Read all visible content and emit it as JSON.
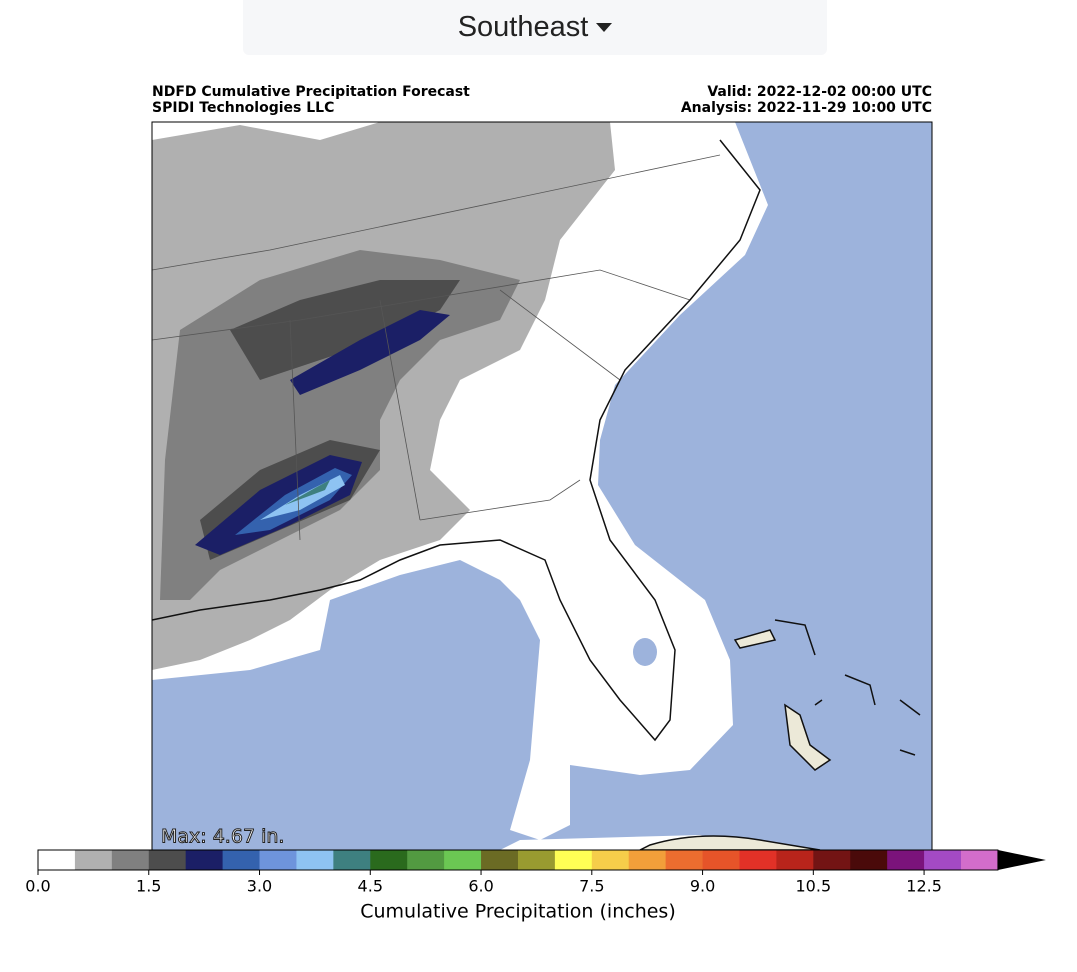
{
  "header": {
    "region": "Southeast"
  },
  "map": {
    "title": "NDFD Cumulative Precipitation Forecast",
    "subtitle": "SPIDI Technologies LLC",
    "valid": "Valid: 2022-12-02 00:00 UTC",
    "analysis": "Analysis: 2022-11-29 10:00 UTC",
    "max_label": "Max: 4.67 in."
  },
  "colorbar": {
    "label": "Cumulative Precipitation (inches)",
    "bounds": [
      0,
      0.5,
      1,
      1.5,
      2,
      2.5,
      3,
      3.5,
      4,
      4.5,
      5,
      5.5,
      6,
      6.5,
      7,
      7.5,
      8,
      8.5,
      9,
      9.5,
      10,
      10.5,
      11,
      12,
      12.5,
      13,
      14
    ],
    "colors": [
      "#ffffff",
      "#b0b0b0",
      "#808080",
      "#4d4d4d",
      "#1b1f66",
      "#3462ae",
      "#6e94dc",
      "#8ec3f2",
      "#3e8080",
      "#2a6a1d",
      "#529a41",
      "#6bc753",
      "#6b6b24",
      "#999b30",
      "#ffff55",
      "#f6cd4a",
      "#f29f3a",
      "#ec6d2f",
      "#e65429",
      "#e23127",
      "#b8241b",
      "#731414",
      "#4a0a0a",
      "#7b137b",
      "#a34ac4",
      "#d36dcb"
    ],
    "extend_color": "#000000",
    "ticks": [
      {
        "value": 0,
        "label": "0.0"
      },
      {
        "value": 1.5,
        "label": "1.5"
      },
      {
        "value": 3,
        "label": "3.0"
      },
      {
        "value": 4.5,
        "label": "4.5"
      },
      {
        "value": 6,
        "label": "6.0"
      },
      {
        "value": 7.5,
        "label": "7.5"
      },
      {
        "value": 9,
        "label": "9.0"
      },
      {
        "value": 10.5,
        "label": "10.5"
      },
      {
        "value": 12.5,
        "label": "12.5"
      }
    ]
  }
}
